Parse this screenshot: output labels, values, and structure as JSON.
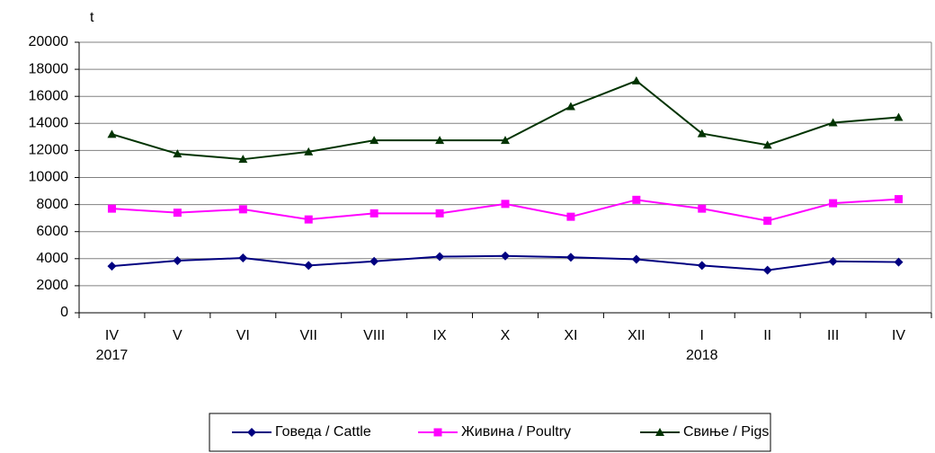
{
  "chart_data": {
    "type": "line",
    "y_label": "t",
    "categories": [
      "IV",
      "V",
      "VI",
      "VII",
      "VIII",
      "IX",
      "X",
      "XI",
      "XII",
      "I",
      "II",
      "III",
      "IV"
    ],
    "year_labels": [
      "2017",
      null,
      null,
      null,
      null,
      null,
      null,
      null,
      null,
      "2018",
      null,
      null,
      null
    ],
    "series": [
      {
        "name": "Говеда / Cattle",
        "color": "#000080",
        "marker": "diamond",
        "values": [
          3450,
          3850,
          4050,
          3500,
          3800,
          4150,
          4200,
          4100,
          3950,
          3500,
          3150,
          3800,
          3750
        ]
      },
      {
        "name": "Живина / Poultry",
        "color": "#ff00ff",
        "marker": "square",
        "values": [
          7700,
          7400,
          7650,
          6900,
          7350,
          7350,
          8050,
          7100,
          8350,
          7700,
          6800,
          8100,
          8400
        ]
      },
      {
        "name": "Свиње / Pigs",
        "color": "#003300",
        "marker": "triangle",
        "values": [
          13200,
          11750,
          11350,
          11900,
          12750,
          12750,
          12750,
          15250,
          17150,
          13250,
          12400,
          14050,
          14450
        ]
      }
    ],
    "ylim": [
      0,
      20000
    ],
    "yticks": [
      0,
      2000,
      4000,
      6000,
      8000,
      10000,
      12000,
      14000,
      16000,
      18000,
      20000
    ],
    "grid": true,
    "legend": "bottom"
  }
}
